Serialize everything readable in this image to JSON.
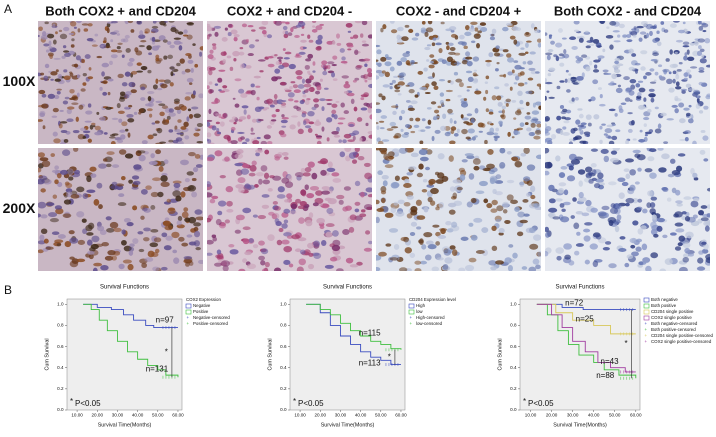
{
  "panel_a": {
    "label": "A",
    "columns": [
      "Both COX2 + and CD204",
      "COX2 + and CD204 -",
      "COX2 - and CD204 +",
      "Both COX2 - and CD204"
    ],
    "rows": [
      "100X",
      "200X"
    ]
  },
  "panel_b": {
    "label": "B"
  },
  "chart_data": [
    {
      "type": "line",
      "title": "Survival Functions",
      "xlabel": "Survival Time(Months)",
      "ylabel": "Cum Survival",
      "legend_title": "COX2 Expression",
      "significance": "*",
      "pvalue_note": "P<0.05",
      "xlim": [
        5,
        62
      ],
      "ylim": [
        0,
        1.05
      ],
      "xticks": [
        {
          "value": 10,
          "label": "10.00"
        },
        {
          "value": 20,
          "label": "20.00"
        },
        {
          "value": 30,
          "label": "30.00"
        },
        {
          "value": 40,
          "label": "40.00"
        },
        {
          "value": 50,
          "label": "50.00"
        },
        {
          "value": 60,
          "label": "60.00"
        }
      ],
      "yticks": [
        {
          "value": 0,
          "label": "0.0"
        },
        {
          "value": 0.2,
          "label": "0.2"
        },
        {
          "value": 0.4,
          "label": "0.4"
        },
        {
          "value": 0.6,
          "label": "0.6"
        },
        {
          "value": 0.8,
          "label": "0.8"
        },
        {
          "value": 1,
          "label": "1.0"
        }
      ],
      "series": [
        {
          "name": "Negative",
          "censored_name": "Negative-censored",
          "n_label": "n=97",
          "color": "#3a4cc0",
          "x": [
            13,
            20,
            27,
            33,
            38,
            44,
            48,
            60
          ],
          "values": [
            1,
            0.97,
            0.95,
            0.9,
            0.85,
            0.8,
            0.78,
            0.78
          ]
        },
        {
          "name": "Positive",
          "censored_name": "Positive-censored",
          "n_label": "n=131",
          "color": "#3fbf3f",
          "x": [
            13,
            17,
            21,
            25,
            30,
            35,
            40,
            45,
            50,
            54,
            60
          ],
          "values": [
            1,
            0.95,
            0.85,
            0.75,
            0.65,
            0.55,
            0.48,
            0.42,
            0.38,
            0.33,
            0.31
          ]
        }
      ]
    },
    {
      "type": "line",
      "title": "Survival Functions",
      "xlabel": "Survival Time(Months)",
      "ylabel": "Cum Survival",
      "legend_title": "CD204 Expression level",
      "significance": "*",
      "pvalue_note": "P<0.05",
      "xlim": [
        5,
        62
      ],
      "ylim": [
        0,
        1.05
      ],
      "xticks": [
        {
          "value": 10,
          "label": "10.00"
        },
        {
          "value": 20,
          "label": "20.00"
        },
        {
          "value": 30,
          "label": "30.00"
        },
        {
          "value": 40,
          "label": "40.00"
        },
        {
          "value": 50,
          "label": "50.00"
        },
        {
          "value": 60,
          "label": "60.00"
        }
      ],
      "yticks": [
        {
          "value": 0,
          "label": "0.0"
        },
        {
          "value": 0.2,
          "label": "0.2"
        },
        {
          "value": 0.4,
          "label": "0.4"
        },
        {
          "value": 0.6,
          "label": "0.6"
        },
        {
          "value": 0.8,
          "label": "0.8"
        },
        {
          "value": 1,
          "label": "1.0"
        }
      ],
      "series": [
        {
          "name": "High",
          "censored_name": "High-censored",
          "n_label": "n=113",
          "color": "#3a4cc0",
          "x": [
            13,
            20,
            25,
            30,
            35,
            40,
            45,
            50,
            55,
            60
          ],
          "values": [
            1,
            0.92,
            0.8,
            0.7,
            0.62,
            0.55,
            0.5,
            0.47,
            0.43,
            0.43
          ]
        },
        {
          "name": "low",
          "censored_name": "low-censored",
          "n_label": "n=115",
          "color": "#3fbf3f",
          "x": [
            13,
            20,
            25,
            30,
            35,
            40,
            45,
            50,
            55,
            60
          ],
          "values": [
            1,
            0.95,
            0.9,
            0.82,
            0.75,
            0.7,
            0.65,
            0.62,
            0.58,
            0.57
          ]
        }
      ]
    },
    {
      "type": "line",
      "title": "Survival Functions",
      "xlabel": "Survival Time(Months)",
      "ylabel": "Cum Survival",
      "significance": "*",
      "pvalue_note": "P<0.05",
      "xlim": [
        5,
        62
      ],
      "ylim": [
        0,
        1.05
      ],
      "xticks": [
        {
          "value": 10,
          "label": "10.00"
        },
        {
          "value": 20,
          "label": "20.00"
        },
        {
          "value": 30,
          "label": "30.00"
        },
        {
          "value": 40,
          "label": "40.00"
        },
        {
          "value": 50,
          "label": "50.00"
        },
        {
          "value": 60,
          "label": "60.00"
        }
      ],
      "yticks": [
        {
          "value": 0,
          "label": "0.0"
        },
        {
          "value": 0.2,
          "label": "0.2"
        },
        {
          "value": 0.4,
          "label": "0.4"
        },
        {
          "value": 0.6,
          "label": "0.6"
        },
        {
          "value": 0.8,
          "label": "0.8"
        },
        {
          "value": 1,
          "label": "1.0"
        }
      ],
      "series": [
        {
          "name": "Both negative",
          "censored_name": "Both negative-censored",
          "n_label": "n=72",
          "color": "#3a4cc0",
          "x": [
            13,
            25,
            35,
            60
          ],
          "values": [
            1,
            0.97,
            0.95,
            0.95
          ]
        },
        {
          "name": "Both positive",
          "censored_name": "Both positive-censored",
          "n_label": "n=88",
          "color": "#3fbf3f",
          "x": [
            13,
            18,
            23,
            28,
            33,
            40,
            45,
            52,
            60
          ],
          "values": [
            1,
            0.9,
            0.75,
            0.62,
            0.52,
            0.45,
            0.38,
            0.33,
            0.3
          ]
        },
        {
          "name": "CD204 single positive",
          "censored_name": "CD204 single positive-censored",
          "n_label": "n=25",
          "color": "#d8c85a",
          "x": [
            13,
            22,
            30,
            40,
            48,
            60
          ],
          "values": [
            1,
            0.92,
            0.85,
            0.8,
            0.72,
            0.72
          ]
        },
        {
          "name": "COX2 single positive",
          "censored_name": "COX2 single positive-censored",
          "n_label": "n=43",
          "color": "#a03ca0",
          "x": [
            13,
            20,
            25,
            30,
            36,
            42,
            48,
            55,
            60
          ],
          "values": [
            1,
            0.9,
            0.78,
            0.65,
            0.55,
            0.45,
            0.4,
            0.36,
            0.36
          ]
        }
      ]
    }
  ]
}
